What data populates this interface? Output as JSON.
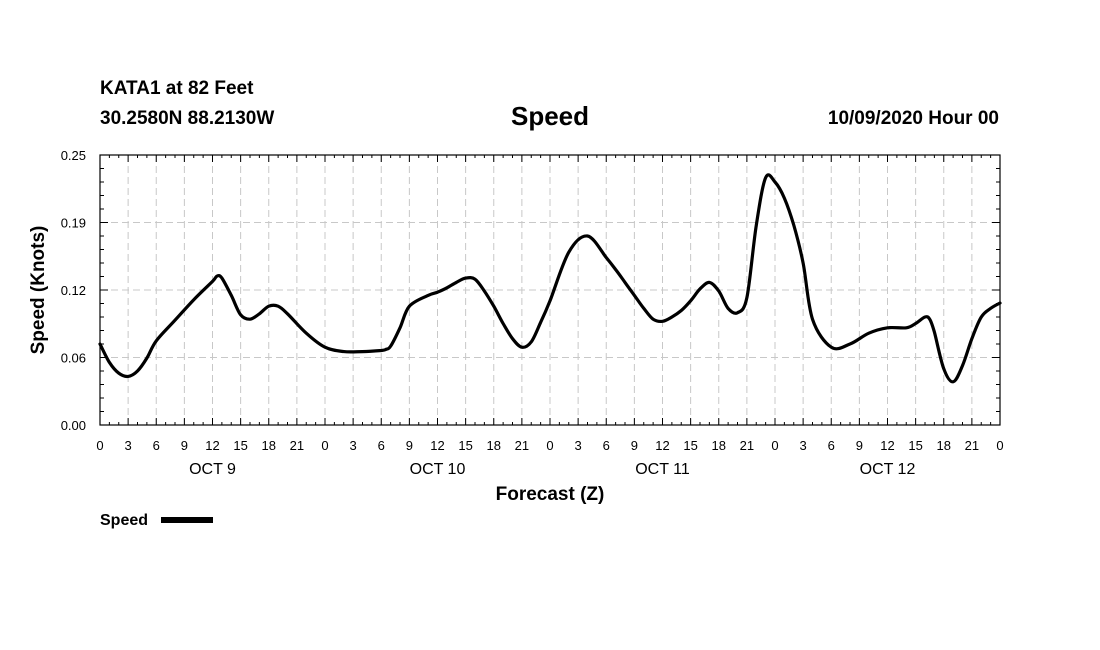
{
  "header": {
    "station": "KATA1 at 82 Feet",
    "location": "30.2580N 88.2130W",
    "title": "Speed",
    "datetime": "10/09/2020 Hour 00"
  },
  "chart_data": {
    "type": "line",
    "title": "Speed",
    "xlabel": "Forecast (Z)",
    "ylabel": "Speed (Knots)",
    "ylim": [
      0,
      0.25
    ],
    "yticks": [
      "0.00",
      "0.06",
      "0.12",
      "0.19",
      "0.25"
    ],
    "ytick_values": [
      0,
      0.0625,
      0.125,
      0.1875,
      0.25
    ],
    "xlim": [
      0,
      96
    ],
    "xtick_hours": [
      0,
      3,
      6,
      9,
      12,
      15,
      18,
      21,
      24,
      27,
      30,
      33,
      36,
      39,
      42,
      45,
      48,
      51,
      54,
      57,
      60,
      63,
      66,
      69,
      72,
      75,
      78,
      81,
      84,
      87,
      90,
      93,
      96
    ],
    "xtick_labels": [
      "0",
      "3",
      "6",
      "9",
      "12",
      "15",
      "18",
      "21",
      "0",
      "3",
      "6",
      "9",
      "12",
      "15",
      "18",
      "21",
      "0",
      "3",
      "6",
      "9",
      "12",
      "15",
      "18",
      "21",
      "0",
      "3",
      "6",
      "9",
      "12",
      "15",
      "18",
      "21",
      "0"
    ],
    "day_labels": [
      {
        "label": "OCT 9",
        "hour": 12
      },
      {
        "label": "OCT 10",
        "hour": 36
      },
      {
        "label": "OCT 11",
        "hour": 60
      },
      {
        "label": "OCT 12",
        "hour": 84
      }
    ],
    "grid": true,
    "legend": "bottom-left",
    "series": [
      {
        "name": "Speed",
        "color": "#000000",
        "x": [
          0,
          1,
          2,
          3,
          4,
          5,
          6,
          8,
          10,
          12,
          12.5,
          13,
          14,
          15,
          16,
          17,
          18,
          19,
          20,
          22,
          24,
          26,
          28,
          30,
          30.5,
          31,
          32,
          33,
          35,
          36,
          37,
          38,
          39,
          40,
          41,
          42,
          43,
          44,
          45,
          46,
          47,
          48,
          50,
          52,
          54,
          55,
          56,
          57,
          58,
          59,
          60,
          61,
          62,
          63,
          64,
          65,
          66,
          67,
          68,
          69,
          70,
          71,
          72,
          73,
          74,
          75,
          76,
          78,
          80,
          82,
          84,
          86,
          87,
          88,
          88.5,
          89,
          90,
          91,
          92,
          93,
          94,
          95,
          96
        ],
        "values": [
          0.075,
          0.058,
          0.048,
          0.045,
          0.05,
          0.062,
          0.078,
          0.097,
          0.116,
          0.133,
          0.138,
          0.136,
          0.12,
          0.102,
          0.098,
          0.103,
          0.11,
          0.11,
          0.103,
          0.085,
          0.072,
          0.068,
          0.068,
          0.069,
          0.07,
          0.073,
          0.09,
          0.11,
          0.12,
          0.123,
          0.127,
          0.132,
          0.136,
          0.135,
          0.124,
          0.11,
          0.094,
          0.08,
          0.072,
          0.077,
          0.095,
          0.115,
          0.16,
          0.175,
          0.155,
          0.144,
          0.132,
          0.12,
          0.108,
          0.098,
          0.096,
          0.1,
          0.106,
          0.115,
          0.126,
          0.132,
          0.124,
          0.108,
          0.104,
          0.118,
          0.185,
          0.229,
          0.225,
          0.21,
          0.185,
          0.15,
          0.098,
          0.072,
          0.075,
          0.085,
          0.09,
          0.09,
          0.094,
          0.1,
          0.098,
          0.086,
          0.052,
          0.04,
          0.055,
          0.08,
          0.1,
          0.108,
          0.113
        ]
      }
    ]
  }
}
